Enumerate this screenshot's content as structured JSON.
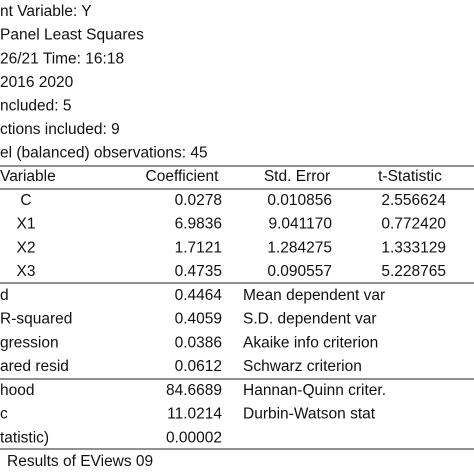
{
  "header": {
    "lines": [
      "nt Variable: Y",
      "Panel Least Squares",
      "26/21   Time: 16:18",
      "2016 2020",
      "ncluded: 5",
      "ctions included: 9",
      "el (balanced) observations: 45"
    ]
  },
  "table": {
    "columns": [
      "Variable",
      "Coefficient",
      "Std. Error",
      "t-Statistic"
    ],
    "rows": [
      [
        "C",
        "0.0278",
        "0.010856",
        "2.556624"
      ],
      [
        "X1",
        "6.9836",
        "9.041170",
        "0.772420"
      ],
      [
        "X2",
        "1.7121",
        "1.284275",
        "1.333129"
      ],
      [
        "X3",
        "0.4735",
        "0.090557",
        "5.228765"
      ]
    ]
  },
  "stats": {
    "rows": [
      [
        "d",
        "0.4464",
        "Mean dependent var"
      ],
      [
        "R-squared",
        "0.4059",
        "S.D. dependent var"
      ],
      [
        "gression",
        "0.0386",
        "Akaike info criterion"
      ],
      [
        "ared resid",
        "0.0612",
        "Schwarz criterion"
      ],
      [
        "hood",
        "84.6689",
        "Hannan-Quinn criter."
      ],
      [
        "c",
        "11.0214",
        "Durbin-Watson stat"
      ],
      [
        "tatistic)",
        "0.00002"
      ]
    ]
  },
  "footer": "Results of EViews 09"
}
